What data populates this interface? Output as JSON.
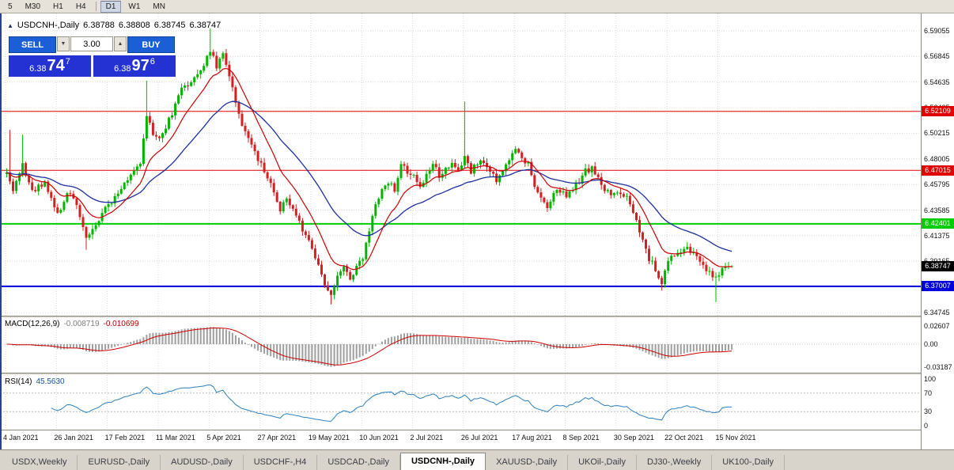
{
  "toolbar": {
    "timeframes": [
      "5",
      "M30",
      "H1",
      "H4",
      "D1",
      "W1",
      "MN"
    ],
    "active": "D1"
  },
  "chart": {
    "symbol": "USDCNH-,Daily",
    "ohlc": {
      "o": "6.38788",
      "h": "6.38808",
      "l": "6.38745",
      "c": "6.38747"
    },
    "trade": {
      "sell": "SELL",
      "buy": "BUY",
      "volume": "3.00",
      "sell_base": "6.38",
      "sell_big": "74",
      "sell_sup": "7",
      "buy_base": "6.38",
      "buy_big": "97",
      "buy_sup": "6",
      "button_color": "#1a5fd6",
      "box_color": "#2431d3"
    }
  },
  "chart_data": {
    "type": "candlestick",
    "symbol": "USDCNH-",
    "timeframe": "Daily",
    "candles_count": 229,
    "bars_per_tick": 16,
    "x_ticks": [
      "4 Jan 2021",
      "26 Jan 2021",
      "17 Feb 2021",
      "11 Mar 2021",
      "5 Apr 2021",
      "27 Apr 2021",
      "19 May 2021",
      "10 Jun 2021",
      "2 Jul 2021",
      "26 Jul 2021",
      "17 Aug 2021",
      "8 Sep 2021",
      "30 Sep 2021",
      "22 Oct 2021",
      "15 Nov 2021"
    ],
    "y_ticks": [
      6.59055,
      6.56845,
      6.54635,
      6.52425,
      6.50215,
      6.48005,
      6.45795,
      6.43585,
      6.41375,
      6.39165,
      6.36955,
      6.34745
    ],
    "bid": 6.38747,
    "bid_label": "6.38747",
    "levels": [
      {
        "value": 6.52109,
        "label": "6.52109",
        "color": "#e00000",
        "width": 1
      },
      {
        "value": 6.47015,
        "label": "6.47015",
        "color": "#e00000",
        "width": 1
      },
      {
        "value": 6.42401,
        "label": "6.42401",
        "color": "#00ce00",
        "width": 2
      },
      {
        "value": 6.37007,
        "label": "6.37007",
        "color": "#0000dc",
        "width": 2
      }
    ],
    "price_waypoints": [
      [
        0,
        6.47
      ],
      [
        2,
        6.452
      ],
      [
        5,
        6.476
      ],
      [
        8,
        6.452
      ],
      [
        12,
        6.461
      ],
      [
        16,
        6.431
      ],
      [
        19,
        6.452
      ],
      [
        22,
        6.442
      ],
      [
        25,
        6.41
      ],
      [
        28,
        6.422
      ],
      [
        31,
        6.438
      ],
      [
        34,
        6.447
      ],
      [
        38,
        6.462
      ],
      [
        42,
        6.478
      ],
      [
        44,
        6.515
      ],
      [
        46,
        6.503
      ],
      [
        48,
        6.498
      ],
      [
        52,
        6.519
      ],
      [
        55,
        6.54
      ],
      [
        58,
        6.548
      ],
      [
        61,
        6.556
      ],
      [
        64,
        6.574
      ],
      [
        66,
        6.559
      ],
      [
        68,
        6.57
      ],
      [
        70,
        6.552
      ],
      [
        72,
        6.53
      ],
      [
        74,
        6.508
      ],
      [
        77,
        6.494
      ],
      [
        80,
        6.474
      ],
      [
        83,
        6.459
      ],
      [
        86,
        6.437
      ],
      [
        88,
        6.447
      ],
      [
        90,
        6.437
      ],
      [
        92,
        6.424
      ],
      [
        95,
        6.41
      ],
      [
        98,
        6.386
      ],
      [
        100,
        6.373
      ],
      [
        102,
        6.363
      ],
      [
        104,
        6.377
      ],
      [
        106,
        6.389
      ],
      [
        108,
        6.377
      ],
      [
        110,
        6.385
      ],
      [
        112,
        6.394
      ],
      [
        114,
        6.42
      ],
      [
        116,
        6.441
      ],
      [
        118,
        6.452
      ],
      [
        120,
        6.461
      ],
      [
        122,
        6.452
      ],
      [
        124,
        6.477
      ],
      [
        126,
        6.47
      ],
      [
        128,
        6.467
      ],
      [
        130,
        6.455
      ],
      [
        132,
        6.466
      ],
      [
        134,
        6.478
      ],
      [
        136,
        6.465
      ],
      [
        138,
        6.47
      ],
      [
        140,
        6.474
      ],
      [
        142,
        6.468
      ],
      [
        144,
        6.484
      ],
      [
        146,
        6.47
      ],
      [
        148,
        6.477
      ],
      [
        150,
        6.479
      ],
      [
        152,
        6.468
      ],
      [
        154,
        6.462
      ],
      [
        156,
        6.47
      ],
      [
        158,
        6.48
      ],
      [
        160,
        6.487
      ],
      [
        162,
        6.48
      ],
      [
        164,
        6.475
      ],
      [
        166,
        6.455
      ],
      [
        168,
        6.445
      ],
      [
        170,
        6.438
      ],
      [
        172,
        6.45
      ],
      [
        174,
        6.452
      ],
      [
        176,
        6.447
      ],
      [
        178,
        6.453
      ],
      [
        180,
        6.461
      ],
      [
        182,
        6.47
      ],
      [
        184,
        6.472
      ],
      [
        186,
        6.462
      ],
      [
        188,
        6.454
      ],
      [
        190,
        6.45
      ],
      [
        192,
        6.453
      ],
      [
        194,
        6.449
      ],
      [
        196,
        6.442
      ],
      [
        198,
        6.425
      ],
      [
        200,
        6.408
      ],
      [
        202,
        6.394
      ],
      [
        204,
        6.385
      ],
      [
        206,
        6.373
      ],
      [
        208,
        6.393
      ],
      [
        210,
        6.398
      ],
      [
        212,
        6.402
      ],
      [
        214,
        6.405
      ],
      [
        216,
        6.398
      ],
      [
        218,
        6.39
      ],
      [
        220,
        6.384
      ],
      [
        222,
        6.378
      ],
      [
        224,
        6.381
      ],
      [
        226,
        6.387
      ],
      [
        228,
        6.38747
      ]
    ],
    "spikes": [
      {
        "i": 1,
        "high": 6.505
      },
      {
        "i": 5,
        "high": 6.501
      },
      {
        "i": 25,
        "low": 6.4015
      },
      {
        "i": 44,
        "high": 6.548
      },
      {
        "i": 64,
        "high": 6.5925
      },
      {
        "i": 102,
        "low": 6.3545
      },
      {
        "i": 144,
        "high": 6.5295
      },
      {
        "i": 206,
        "low": 6.3665
      },
      {
        "i": 223,
        "low": 6.3565
      }
    ],
    "ma_fast_period": 12,
    "ma_slow_period": 34,
    "macd": {
      "label": "MACD(12,26,9)",
      "value_main": "-0.008719",
      "value_signal": "-0.010699",
      "params": [
        12,
        26,
        9
      ],
      "axis": [
        [
          "0.02607",
          0.02607
        ],
        [
          "0.00",
          0
        ],
        [
          "-0.03187",
          -0.03187
        ]
      ]
    },
    "rsi": {
      "label": "RSI(14)",
      "value": "45.5630",
      "period": 14,
      "levels": [
        30,
        70
      ],
      "axis": [
        [
          "100",
          100
        ],
        [
          "70",
          70
        ],
        [
          "30",
          30
        ],
        [
          "0",
          0
        ]
      ]
    },
    "colors": {
      "bull": "#00b400",
      "bear": "#d42020",
      "ma_fast": "#cc0000",
      "ma_slow": "#1c2fa0",
      "macd_hist": "#9e9e9e",
      "macd_signal": "#cc0000",
      "rsi_line": "#2a7fbe",
      "grid": "#d9d9d9",
      "tag_bid_bg": "#000000"
    }
  },
  "tabs": {
    "active_index": 5,
    "items": [
      "USDX,Weekly",
      "EURUSD-,Daily",
      "AUDUSD-,Daily",
      "USDCHF-,H4",
      "USDCAD-,Daily",
      "USDCNH-,Daily",
      "XAUUSD-,Daily",
      "UKOil-,Daily",
      "DJ30-,Weekly",
      "UK100-,Daily"
    ]
  }
}
